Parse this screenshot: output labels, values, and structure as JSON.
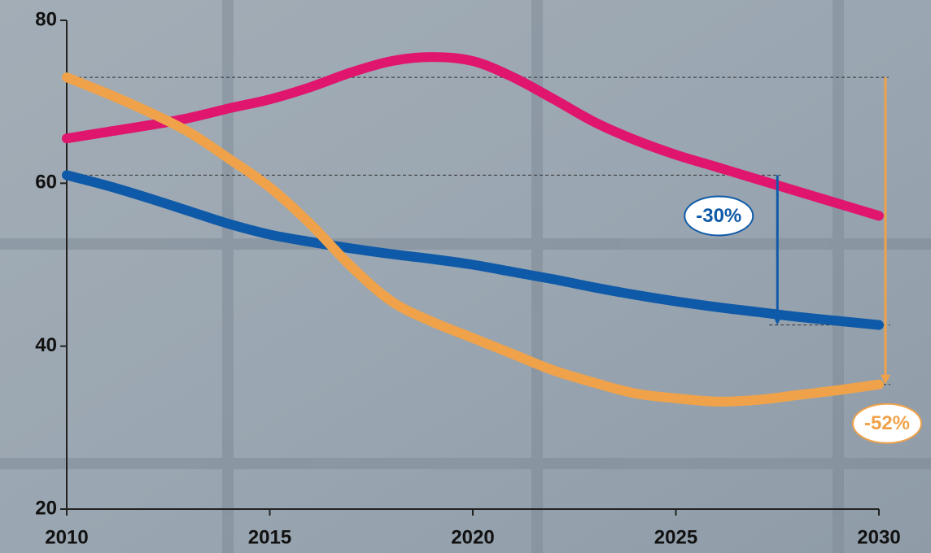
{
  "chart_data": {
    "type": "line",
    "x": [
      2010,
      2011,
      2012,
      2013,
      2014,
      2015,
      2016,
      2017,
      2018,
      2019,
      2020,
      2021,
      2022,
      2023,
      2024,
      2025,
      2026,
      2027,
      2028,
      2029,
      2030
    ],
    "xlim": [
      2010,
      2030
    ],
    "xticks": [
      2010,
      2015,
      2020,
      2025,
      2030
    ],
    "ylim": [
      20,
      80
    ],
    "yticks": [
      20,
      40,
      60,
      80
    ],
    "series": [
      {
        "color": "#e0156e",
        "values": [
          65.5,
          66.3,
          67.1,
          68,
          69.2,
          70.3,
          71.8,
          73.6,
          75,
          75.5,
          75,
          73,
          70.3,
          67.5,
          65.3,
          63.5,
          62,
          60.5,
          59,
          57.5,
          56
        ]
      },
      {
        "color": "#0f5aa8",
        "change_label": "-30%",
        "values": [
          61,
          59.7,
          58.2,
          56.6,
          55,
          53.7,
          52.8,
          52,
          51.3,
          50.7,
          50,
          49.1,
          48.2,
          47.2,
          46.3,
          45.5,
          44.8,
          44.2,
          43.6,
          43.1,
          42.6
        ]
      },
      {
        "color": "#f0a24a",
        "change_label": "-52%",
        "values": [
          73,
          71,
          68.8,
          66.3,
          63,
          59.5,
          55,
          49.8,
          45.5,
          43,
          41,
          39,
          37,
          35.5,
          34.2,
          33.6,
          33.2,
          33.4,
          34,
          34.6,
          35.3
        ]
      }
    ]
  }
}
